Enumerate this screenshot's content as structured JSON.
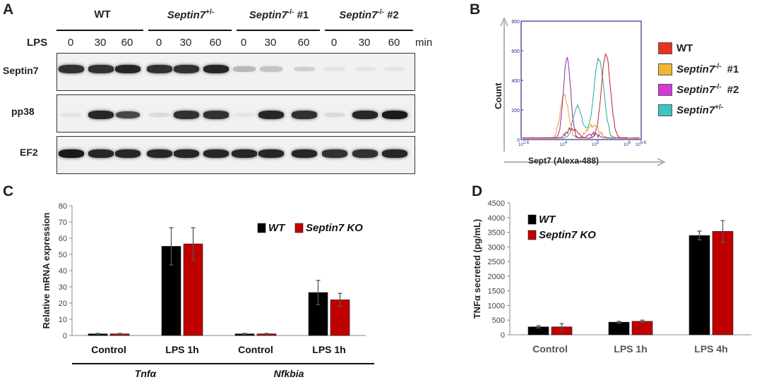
{
  "panels": {
    "a": "A",
    "b": "B",
    "c": "C",
    "d": "D"
  },
  "panel_a": {
    "groups": [
      {
        "base": "WT",
        "sup": ""
      },
      {
        "base": "Septin7",
        "sup": "+/-"
      },
      {
        "base": "Septin7",
        "sup": "-/-",
        "suffix": "#1"
      },
      {
        "base": "Septin7",
        "sup": "-/-",
        "suffix": "#2"
      }
    ],
    "lps_label": "LPS",
    "unit_label": "min",
    "time_points": [
      "0",
      "30",
      "60",
      "0",
      "30",
      "60",
      "0",
      "30",
      "60",
      "0",
      "30",
      "60"
    ],
    "rows": [
      {
        "label": "Septin7",
        "intensities": [
          0.85,
          0.85,
          0.9,
          0.85,
          0.85,
          0.9,
          0.25,
          0.2,
          0.15,
          0.05,
          0.05,
          0.05
        ]
      },
      {
        "label": "pp38",
        "intensities": [
          0.05,
          0.9,
          0.75,
          0.1,
          0.85,
          0.85,
          0.05,
          0.9,
          0.85,
          0.1,
          0.9,
          0.95
        ]
      },
      {
        "label": "EF2",
        "intensities": [
          0.95,
          0.9,
          0.9,
          0.9,
          0.9,
          0.9,
          0.9,
          0.9,
          0.9,
          0.85,
          0.85,
          0.9
        ]
      }
    ]
  },
  "panel_b": {
    "ylabel": "Count",
    "xlabel": "Sept7 (Alexa-488)",
    "y_ticks": [
      "800",
      "600",
      "400",
      "200",
      "0"
    ],
    "x_ticks": [
      "10",
      "10",
      "10",
      "10",
      "10"
    ],
    "x_tick_sups": [
      "2.6",
      "4",
      "5",
      "6",
      "6.6"
    ],
    "legend": [
      {
        "base": "WT",
        "sup": "",
        "suffix": "",
        "color": "#e8331c"
      },
      {
        "base": "Septin7",
        "sup": "-/-",
        "suffix": "#1",
        "color": "#f2b632"
      },
      {
        "base": "Septin7",
        "sup": "-/-",
        "suffix": "#2",
        "color": "#d63ad6"
      },
      {
        "base": "Septin7",
        "sup": "+/-",
        "suffix": "",
        "color": "#3cc6c0"
      }
    ],
    "curve_colors": {
      "wt": "#c2202c",
      "ko1": "#e2a030",
      "ko2": "#8a2a9a",
      "het": "#2aa6a0"
    }
  },
  "chart_data": [
    {
      "type": "bar",
      "title": "",
      "ylabel": "Relative mRNA expression",
      "ylim": [
        0,
        80
      ],
      "y_ticks": [
        "0",
        "10",
        "20",
        "30",
        "40",
        "50",
        "60",
        "70",
        "80"
      ],
      "categories": [
        "Control",
        "LPS 1h",
        "Control",
        "LPS 1h"
      ],
      "groups": [
        {
          "label": "Tnfα",
          "categories": [
            "Control",
            "LPS 1h"
          ]
        },
        {
          "label": "Nfkbia",
          "categories": [
            "Control",
            "LPS 1h"
          ]
        }
      ],
      "series": [
        {
          "name": "WT",
          "color": "#000000",
          "values": [
            1,
            55,
            1,
            26.5
          ],
          "errors": [
            0.3,
            11.5,
            0.3,
            7.5
          ]
        },
        {
          "name": "Septin7 KO",
          "color": "#c00000",
          "values": [
            1,
            56.5,
            1,
            22
          ],
          "errors": [
            0.3,
            10,
            0.3,
            4
          ]
        }
      ],
      "legend_position": "top-right"
    },
    {
      "type": "bar",
      "title": "",
      "ylabel": "TNFα secreted (pg/mL)",
      "ylim": [
        0,
        4500
      ],
      "y_ticks": [
        "0",
        "500",
        "1000",
        "1500",
        "2000",
        "2500",
        "3000",
        "3500",
        "4000",
        "4500"
      ],
      "categories": [
        "Control",
        "LPS 1h",
        "LPS 4h"
      ],
      "series": [
        {
          "name": "WT",
          "color": "#000000",
          "values": [
            270,
            430,
            3390
          ],
          "errors": [
            40,
            30,
            150
          ]
        },
        {
          "name": "Septin7 KO",
          "color": "#c00000",
          "values": [
            270,
            460,
            3530
          ],
          "errors": [
            110,
            40,
            370
          ]
        }
      ],
      "legend_position": "top-left"
    }
  ]
}
